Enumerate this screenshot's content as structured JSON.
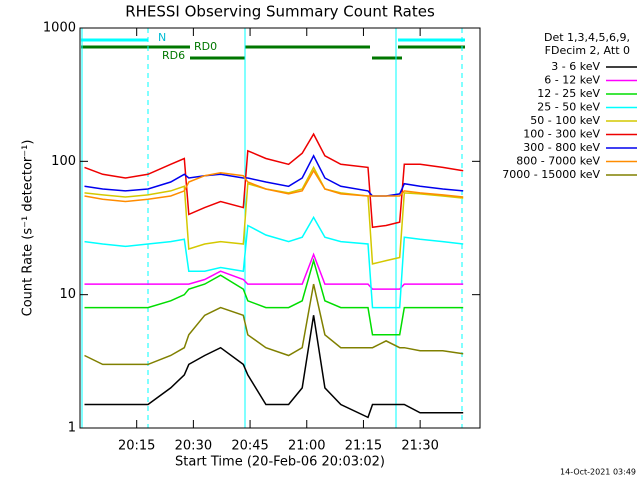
{
  "chart_data": {
    "type": "line",
    "title": "RHESSI Observing Summary Count Rates",
    "x_label": "Start Time (20-Feb-06 20:03:02)",
    "y_label": "Count Rate (s⁻¹ detector⁻¹)",
    "legend_header": [
      "Det 1,3,4,5,6,9,",
      "FDecim 2, Att 0"
    ],
    "annotations": [
      "N",
      "RD0",
      "RD6"
    ],
    "footer": "14-Oct-2021 03:49",
    "log_y": true,
    "legend": "right",
    "xlim": [
      20.0,
      21.764
    ],
    "ylim": [
      1,
      1000
    ],
    "xticks": [
      {
        "value": 20.25,
        "label": "20:15"
      },
      {
        "value": 20.5,
        "label": "20:30"
      },
      {
        "value": 20.75,
        "label": "20:45"
      },
      {
        "value": 21.0,
        "label": "21:00"
      },
      {
        "value": 21.25,
        "label": "21:15"
      },
      {
        "value": 21.5,
        "label": "21:30"
      }
    ],
    "yticks": [
      1,
      10,
      100,
      1000
    ],
    "x": [
      20.02,
      20.1,
      20.2,
      20.3,
      20.4,
      20.46,
      20.48,
      20.55,
      20.62,
      20.72,
      20.74,
      20.82,
      20.92,
      20.98,
      21.03,
      21.08,
      21.15,
      21.27,
      21.29,
      21.35,
      21.41,
      21.43,
      21.5,
      21.6,
      21.69
    ],
    "series": [
      {
        "name": "3 - 6 keV",
        "color": "#000000",
        "values": [
          1.5,
          1.5,
          1.5,
          1.5,
          2,
          2.5,
          3,
          3.5,
          4,
          3,
          2.5,
          1.5,
          1.5,
          2,
          7,
          2,
          1.5,
          1.2,
          1.5,
          1.5,
          1.5,
          1.5,
          1.3,
          1.3,
          1.3
        ]
      },
      {
        "name": "6 - 12 keV",
        "color": "#ff00ff",
        "values": [
          12,
          12,
          12,
          12,
          12,
          12,
          12,
          13,
          15,
          13,
          12,
          12,
          12,
          12,
          20,
          12,
          12,
          12,
          11,
          11,
          11,
          12,
          12,
          12,
          12
        ]
      },
      {
        "name": "12 - 25 keV",
        "color": "#00dd00",
        "values": [
          8,
          8,
          8,
          8,
          9,
          10,
          11,
          12,
          14,
          11,
          9,
          8,
          8,
          9,
          18,
          9,
          8,
          8,
          5,
          5,
          5,
          8,
          8,
          8,
          8
        ]
      },
      {
        "name": "25 - 50 keV",
        "color": "#00ffff",
        "values": [
          25,
          24,
          23,
          24,
          25,
          26,
          15,
          15,
          16,
          15,
          33,
          28,
          25,
          27,
          38,
          27,
          25,
          24,
          8,
          8,
          8,
          27,
          26,
          25,
          24
        ]
      },
      {
        "name": "50 - 100 keV",
        "color": "#d4c800",
        "values": [
          58,
          56,
          54,
          56,
          60,
          65,
          22,
          24,
          25,
          24,
          68,
          62,
          58,
          62,
          90,
          62,
          58,
          55,
          17,
          18,
          19,
          58,
          57,
          55,
          53
        ]
      },
      {
        "name": "100 - 300 keV",
        "color": "#ee0000",
        "values": [
          90,
          80,
          75,
          80,
          95,
          105,
          40,
          45,
          50,
          45,
          120,
          105,
          95,
          115,
          160,
          110,
          95,
          90,
          32,
          33,
          35,
          95,
          95,
          90,
          85
        ]
      },
      {
        "name": "300 - 800 keV",
        "color": "#0000ee",
        "values": [
          65,
          62,
          60,
          62,
          70,
          80,
          75,
          78,
          80,
          75,
          75,
          70,
          65,
          75,
          110,
          75,
          65,
          60,
          55,
          55,
          57,
          68,
          65,
          62,
          60
        ]
      },
      {
        "name": "800 - 7000 keV",
        "color": "#ff8c00",
        "values": [
          55,
          52,
          50,
          52,
          55,
          60,
          70,
          78,
          82,
          78,
          70,
          62,
          57,
          60,
          85,
          62,
          57,
          55,
          55,
          55,
          55,
          60,
          58,
          56,
          54
        ]
      },
      {
        "name": "7000 - 15000 keV",
        "color": "#808000",
        "values": [
          3.5,
          3,
          3,
          3,
          3.5,
          4,
          5,
          7,
          8,
          7,
          5,
          4,
          3.5,
          4,
          12,
          5,
          4,
          4,
          4,
          4.5,
          4,
          4,
          3.8,
          3.8,
          3.6
        ]
      }
    ]
  }
}
